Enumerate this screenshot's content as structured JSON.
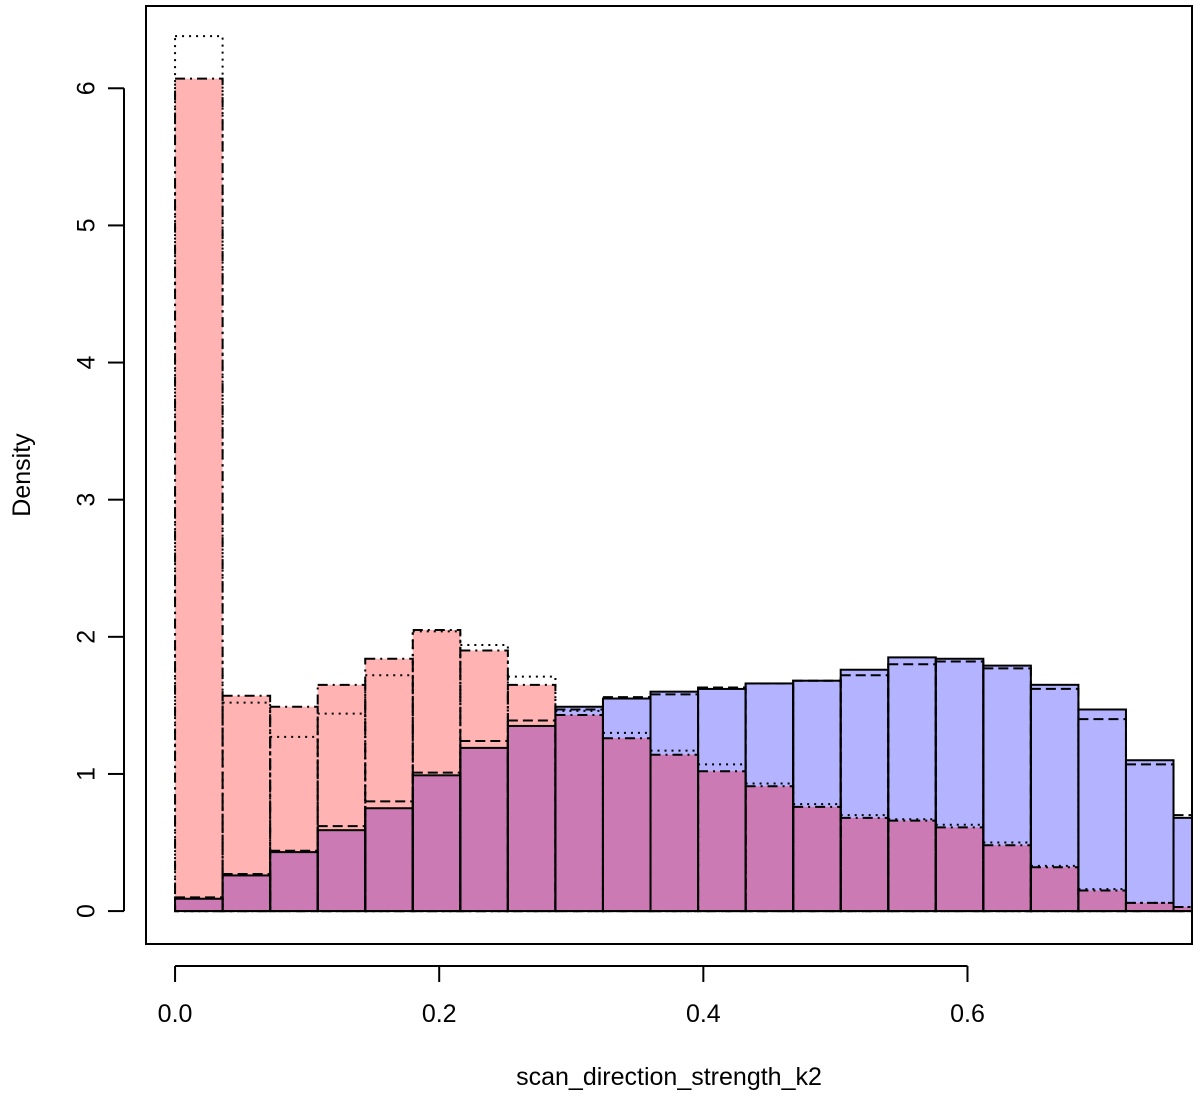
{
  "chart_data": {
    "type": "histogram",
    "title": "",
    "xlabel": "scan_direction_strength_k2",
    "ylabel": "Density",
    "xlim": [
      -0.022,
      0.77
    ],
    "ylim": [
      -0.24,
      6.6
    ],
    "x_ticks": [
      0.0,
      0.2,
      0.4,
      0.6
    ],
    "x_tick_labels": [
      "0.0",
      "0.2",
      "0.4",
      "0.6"
    ],
    "y_ticks": [
      0,
      1,
      2,
      3,
      4,
      5,
      6
    ],
    "y_tick_labels": [
      "0",
      "1",
      "2",
      "3",
      "4",
      "5",
      "6"
    ],
    "bin_edges": [
      0.0,
      0.036,
      0.072,
      0.108,
      0.144,
      0.18,
      0.216,
      0.252,
      0.288,
      0.324,
      0.36,
      0.396,
      0.432,
      0.468,
      0.504,
      0.54,
      0.576,
      0.612,
      0.648,
      0.684,
      0.72,
      0.756,
      0.792
    ],
    "series": [
      {
        "name": "blue-solid",
        "fill": "#b3b3ff",
        "line": "solid",
        "values": [
          0.09,
          0.26,
          0.43,
          0.59,
          0.75,
          0.99,
          1.19,
          1.35,
          1.49,
          1.55,
          1.6,
          1.62,
          1.66,
          1.68,
          1.76,
          1.85,
          1.84,
          1.79,
          1.65,
          1.47,
          1.1,
          0.68
        ]
      },
      {
        "name": "blue-dashed",
        "fill": "none",
        "line": "dashed",
        "values": [
          0.1,
          0.27,
          0.44,
          0.62,
          0.8,
          1.01,
          1.24,
          1.39,
          1.47,
          1.56,
          1.58,
          1.63,
          1.66,
          1.68,
          1.72,
          1.8,
          1.82,
          1.77,
          1.62,
          1.4,
          1.07,
          0.7
        ]
      },
      {
        "name": "red-dashdot",
        "fill": "#ffb3b3",
        "line": "dashdot",
        "values": [
          6.07,
          1.57,
          1.49,
          1.65,
          1.84,
          2.05,
          1.9,
          1.65,
          1.43,
          1.26,
          1.14,
          1.02,
          0.91,
          0.76,
          0.68,
          0.66,
          0.61,
          0.48,
          0.32,
          0.15,
          0.06,
          0.03
        ]
      },
      {
        "name": "red-dotted",
        "fill": "none",
        "line": "dotted",
        "values": [
          6.38,
          1.52,
          1.27,
          1.44,
          1.72,
          2.04,
          1.94,
          1.71,
          1.46,
          1.3,
          1.17,
          1.07,
          0.93,
          0.78,
          0.7,
          0.67,
          0.63,
          0.5,
          0.33,
          0.16,
          0.06,
          0.03
        ]
      }
    ],
    "overlap_fill": "#cc7ab3",
    "legend": "none",
    "grid": false
  }
}
